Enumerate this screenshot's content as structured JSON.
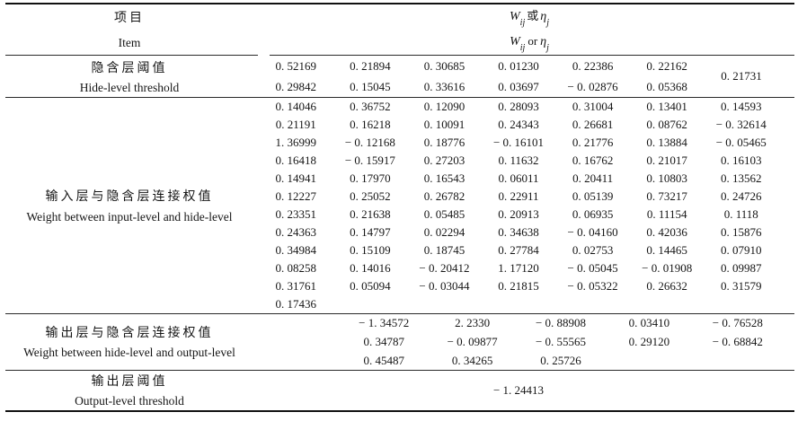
{
  "header": {
    "item_zh": "项目",
    "item_en": "Item",
    "formula": {
      "w": "W",
      "w_sub": "ij",
      "or_zh": "或",
      "or_en": "or",
      "eta": "η",
      "eta_sub": "j"
    }
  },
  "sections": [
    {
      "id": "hide_threshold",
      "label_zh": "隐含层阈值",
      "label_en": "Hide-level threshold",
      "rows": [
        [
          "0. 52169",
          "0. 21894",
          "0. 30685",
          "0. 01230",
          "0. 22386",
          "0. 22162",
          ""
        ],
        [
          "0. 29842",
          "0. 15045",
          "0. 33616",
          "0. 03697",
          "− 0. 02876",
          "0. 05368",
          ""
        ]
      ],
      "span_value": "0. 21731"
    },
    {
      "id": "input_hide_weights",
      "label_zh": "输入层与隐含层连接权值",
      "label_en": "Weight between input-level and hide-level",
      "rows": [
        [
          "0. 14046",
          "0. 36752",
          "0. 12090",
          "0. 28093",
          "0. 31004",
          "0. 13401",
          "0. 14593"
        ],
        [
          "0. 21191",
          "0. 16218",
          "0. 10091",
          "0. 24343",
          "0. 26681",
          "0. 08762",
          "− 0. 32614"
        ],
        [
          "1. 36999",
          "− 0. 12168",
          "0. 18776",
          "− 0. 16101",
          "0. 21776",
          "0. 13884",
          "− 0. 05465"
        ],
        [
          "0. 16418",
          "− 0. 15917",
          "0. 27203",
          "0. 11632",
          "0. 16762",
          "0. 21017",
          "0. 16103"
        ],
        [
          "0. 14941",
          "0. 17970",
          "0. 16543",
          "0. 06011",
          "0. 20411",
          "0. 10803",
          "0. 13562"
        ],
        [
          "0. 12227",
          "0. 25052",
          "0. 26782",
          "0. 22911",
          "0. 05139",
          "0. 73217",
          "0. 24726"
        ],
        [
          "0. 23351",
          "0. 21638",
          "0. 05485",
          "0. 20913",
          "0. 06935",
          "0. 11154",
          "0. 1118"
        ],
        [
          "0. 24363",
          "0. 14797",
          "0. 02294",
          "0. 34638",
          "− 0. 04160",
          "0. 42036",
          "0. 15876"
        ],
        [
          "0. 34984",
          "0. 15109",
          "0. 18745",
          "0. 27784",
          "0. 02753",
          "0. 14465",
          "0. 07910"
        ],
        [
          "0. 08258",
          "0. 14016",
          "− 0. 20412",
          "1. 17120",
          "− 0. 05045",
          "− 0. 01908",
          "0. 09987"
        ],
        [
          "0. 31761",
          "0. 05094",
          "− 0. 03044",
          "0. 21815",
          "− 0. 05322",
          "0. 26632",
          "0. 31579"
        ],
        [
          "0. 17436",
          "",
          "",
          "",
          "",
          "",
          ""
        ]
      ]
    },
    {
      "id": "output_hide_weights",
      "label_zh": "输出层与隐含层连接权值",
      "label_en": "Weight between hide-level and output-level",
      "rows": [
        [
          "− 1. 34572",
          "2. 2330",
          "− 0. 88908",
          "0. 03410",
          "− 0. 76528"
        ],
        [
          "0. 34787",
          "− 0. 09877",
          "− 0. 55565",
          "0. 29120",
          "− 0. 68842"
        ],
        [
          "0. 45487",
          "0. 34265",
          "0. 25726",
          "",
          ""
        ]
      ]
    },
    {
      "id": "output_threshold",
      "label_zh": "输出层阈值",
      "label_en": "Output-level threshold",
      "value": "− 1. 24413"
    }
  ]
}
